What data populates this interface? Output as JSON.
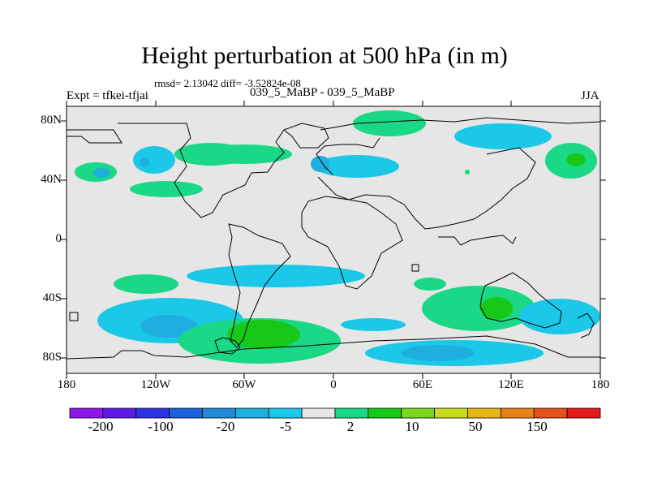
{
  "title": "Height perturbation at 500 hPa (in m)",
  "stats": "rmsd= 2.13042 diff= -3.52824e-08",
  "left_label": "Expt = tfkei-tfjai",
  "center_label": "039_5_MaBP - 039_5_MaBP",
  "right_label": "JJA",
  "axes": {
    "y_ticks": [
      "80N",
      "40N",
      "0",
      "40S",
      "80S"
    ],
    "x_ticks": [
      "180",
      "120W",
      "60W",
      "0",
      "60E",
      "120E",
      "180"
    ]
  },
  "colorbar": {
    "colors": [
      "#8f18e6",
      "#5e1be6",
      "#2c34e0",
      "#1b5fdc",
      "#1e8ad8",
      "#1faee0",
      "#1cc8e8",
      "#e6e6e6",
      "#1ad886",
      "#18c818",
      "#7cd61e",
      "#c8dc1e",
      "#e6b61a",
      "#e6841a",
      "#e6501a",
      "#e61a1a"
    ],
    "labels": [
      "-200",
      "-100",
      "-20",
      "-5",
      "2",
      "10",
      "50",
      "150"
    ]
  },
  "field_colors": {
    "background": "#e6e6e6",
    "cyan": "#1cc8e8",
    "blue": "#1faee0",
    "green_light": "#1ad886",
    "green": "#18c818",
    "outline": "#000000"
  }
}
